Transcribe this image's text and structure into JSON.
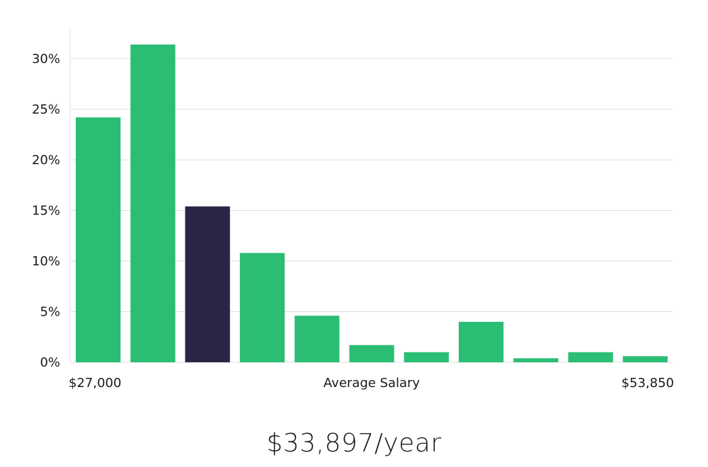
{
  "chart_data": {
    "type": "bar",
    "x_range_labels": [
      "$27,000",
      "$53,850"
    ],
    "xlabel": "Average Salary",
    "ylabel": "",
    "yticks": [
      "0%",
      "5%",
      "10%",
      "15%",
      "20%",
      "25%",
      "30%"
    ],
    "ylim": [
      0,
      33
    ],
    "grid": true,
    "values": [
      24.2,
      31.4,
      15.4,
      10.8,
      4.6,
      1.7,
      1.0,
      4.0,
      0.4,
      1.0,
      0.6
    ],
    "highlight_index": 2,
    "colors": {
      "bar": "#2bbd74",
      "highlight": "#2a2746",
      "grid": "#dddddd",
      "axis": "#dddddd"
    }
  },
  "headline": "$33,897/year"
}
